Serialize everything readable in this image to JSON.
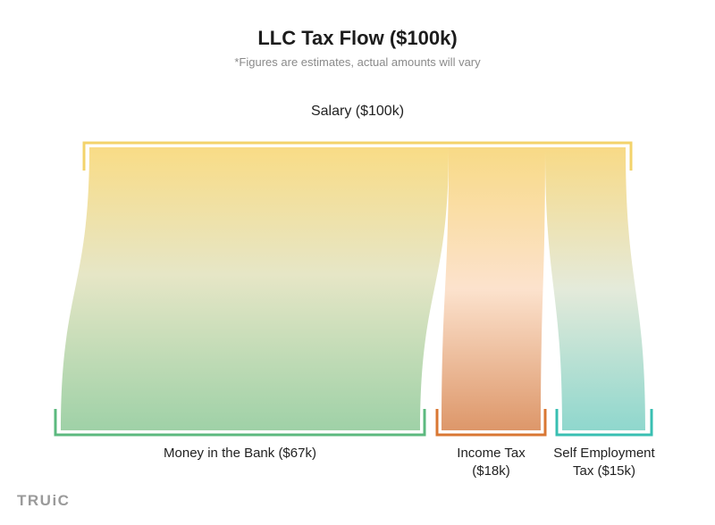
{
  "title": "LLC Tax Flow ($100k)",
  "subtitle": "*Figures are estimates, actual amounts will vary",
  "brand": "TRUiC",
  "colors": {
    "source_bracket": "#f3d36b",
    "bank": "#5cb97f",
    "income": "#d97733",
    "self": "#39bfb2"
  },
  "chart_data": {
    "type": "sankey",
    "source": {
      "label": "Salary ($100k)",
      "value": 100
    },
    "flows": [
      {
        "id": "bank",
        "label": "Money in the Bank ($67k)",
        "value": 67
      },
      {
        "id": "income",
        "label": "Income Tax ($18k)",
        "value": 18
      },
      {
        "id": "self",
        "label": "Self Employment Tax ($15k)",
        "value": 15
      }
    ]
  }
}
